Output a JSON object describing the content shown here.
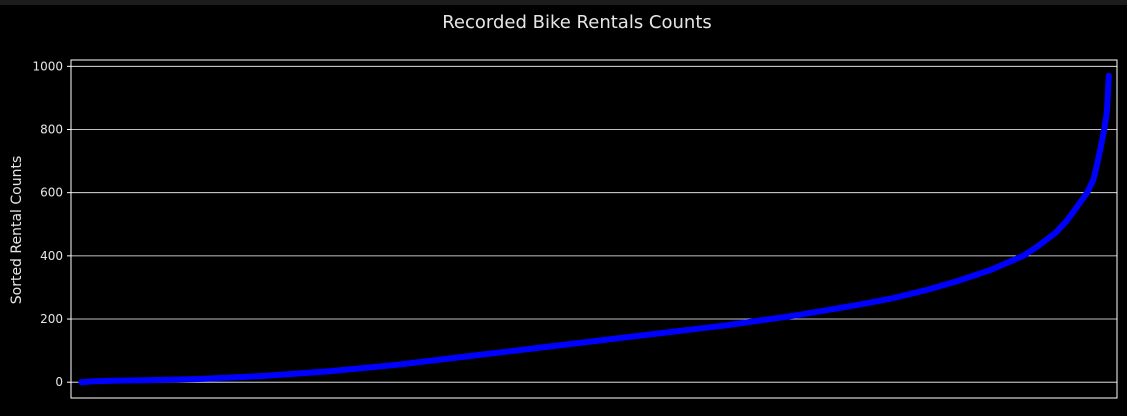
{
  "chart_data": {
    "type": "line",
    "title": "Recorded Bike Rentals Counts",
    "xlabel": "",
    "ylabel": "Sorted Rental Counts",
    "ylim": [
      -50,
      1020
    ],
    "xlim": [
      -10,
      1005
    ],
    "yticks": [
      0,
      200,
      400,
      600,
      800,
      1000
    ],
    "ytick_labels": [
      "0",
      "200",
      "400",
      "600",
      "800",
      "1000"
    ],
    "xticks_visible": false,
    "grid": "horizontal",
    "series": [
      {
        "color": "#0000ff",
        "x": [
          0,
          12,
          35,
          60,
          114,
          178,
          242,
          306,
          370,
          434,
          498,
          562,
          626,
          690,
          754,
          786,
          818,
          850,
          882,
          914,
          928,
          946,
          956,
          965,
          976,
          982,
          985,
          989,
          992,
          995,
          996,
          997
        ],
        "y": [
          0,
          3,
          5,
          6,
          10,
          20,
          35,
          55,
          80,
          105,
          130,
          155,
          180,
          210,
          245,
          265,
          290,
          320,
          355,
          400,
          430,
          475,
          510,
          550,
          600,
          640,
          680,
          740,
          790,
          850,
          900,
          970
        ]
      }
    ]
  }
}
